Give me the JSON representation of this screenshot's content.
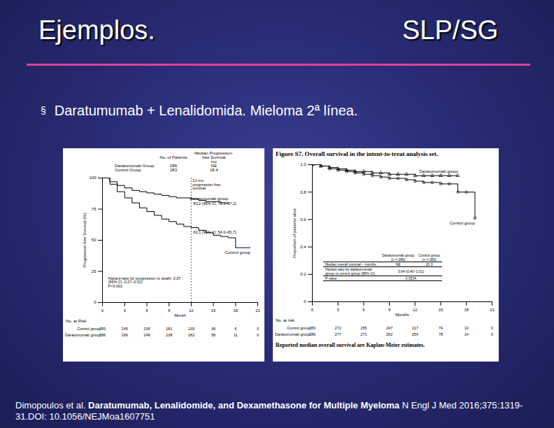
{
  "slide": {
    "title": "Ejemplos.",
    "title_right": "SLP/SG",
    "bullet": "§",
    "text": "Daratumumab + Lenalidomida. Mieloma 2ª línea.",
    "citation": {
      "authors": "Dimopoulos et al.",
      "title": "Daratumumab, Lenalidomide, and Dexamethasone for Multiple Myeloma",
      "journal": "N Engl J Med 2016;375:1319-31.DOI: 10.1056/NEJMoa1607751"
    }
  },
  "chart_data": [
    {
      "type": "line",
      "x_label": "Month",
      "y_label": "Progression-free Survival (%)",
      "xlim": [
        0,
        21
      ],
      "xticks": [
        0,
        3,
        6,
        9,
        12,
        15,
        18,
        21
      ],
      "ylim": [
        0,
        100
      ],
      "yticks": [
        0,
        25,
        50,
        75,
        100
      ],
      "legend_header": {
        "patients": "No. of Patients",
        "median": "Median Progression-free Survival",
        "unit": "mo"
      },
      "landmark_month": 12,
      "annotations": {
        "landmark_title": "12-mo progression-free survival",
        "dara_ci": "83.2 (95% CI, 78.3–87.2)",
        "control_ci": "60.1 (95% CI, 54.0–65.7)",
        "hazard_ratio": "Hazard ratio for progression or death, 0.37 (95% CI, 0.27–0.52)",
        "p_value": "P<0.001"
      },
      "series": [
        {
          "name": "Daratumumab Group",
          "curve_label": "Daratumumab group",
          "patients": 286,
          "median": "NE",
          "color": "#000000",
          "x": [
            0,
            1,
            2,
            3,
            4,
            5,
            6,
            7,
            8,
            9,
            10,
            11,
            12,
            13,
            14,
            15,
            16,
            17
          ],
          "values": [
            100,
            97,
            94,
            92,
            90,
            89,
            88,
            87,
            86,
            85,
            84,
            84,
            83.2,
            82,
            81,
            81,
            80,
            80
          ]
        },
        {
          "name": "Control Group",
          "curve_label": "Control group",
          "patients": 283,
          "median": 18.4,
          "color": "#000000",
          "x": [
            0,
            1,
            2,
            3,
            4,
            5,
            6,
            7,
            8,
            9,
            10,
            11,
            12,
            13,
            14,
            15,
            16,
            17,
            18,
            19,
            20
          ],
          "values": [
            100,
            95,
            89,
            84,
            80,
            76,
            73,
            70,
            67,
            65,
            63,
            61,
            60.1,
            58,
            56,
            54,
            53,
            52,
            44,
            44,
            44
          ]
        }
      ],
      "risk_table": {
        "title": "No. at Risk",
        "rows": [
          {
            "name": "Control group",
            "values": [
              283,
              249,
              206,
              181,
              139,
              36,
              6,
              0
            ]
          },
          {
            "name": "Daratumumab group",
            "values": [
              286,
              266,
              249,
              238,
              182,
              58,
              11,
              0
            ]
          }
        ]
      }
    },
    {
      "type": "line",
      "title": "Figure S7. Overall survival in the intent-to-treat analysis set.",
      "footnote": "Reported median overall survival are Kaplan-Meier estimates.",
      "x_label": "Months",
      "y_label": "Proportion of patients alive",
      "xlim": [
        0,
        21
      ],
      "xticks": [
        0,
        3,
        6,
        9,
        12,
        15,
        18,
        21
      ],
      "ylim": [
        0,
        1
      ],
      "yticks": [
        0,
        0.2,
        0.4,
        0.6,
        0.8,
        {
          "value": 1,
          "label": "1.0"
        }
      ],
      "inner_table": {
        "columns": [
          "Daratumumab group (n = 286)",
          "Control group (n = 283)"
        ],
        "rows": [
          {
            "label": "Median overall survival – months",
            "values": [
              "NE",
              "20.3"
            ]
          },
          {
            "label": "Hazard ratio for daratumumab group vs control group (95% CI)",
            "values": [
              "0.64 (0.40–1.01)"
            ]
          },
          {
            "label": "P value",
            "values": [
              "0.0534"
            ]
          }
        ]
      },
      "series": [
        {
          "name": "Daratumumab group",
          "color": "#000000",
          "marker": "triangle",
          "x": [
            0,
            1,
            2,
            3,
            4,
            5,
            6,
            7,
            8,
            9,
            10,
            11,
            12,
            13,
            14,
            15,
            16,
            17
          ],
          "values": [
            1,
            0.99,
            0.98,
            0.97,
            0.96,
            0.95,
            0.95,
            0.94,
            0.94,
            0.93,
            0.93,
            0.93,
            0.92,
            0.92,
            0.92,
            0.92,
            0.92,
            0.92
          ]
        },
        {
          "name": "Control group",
          "color": "#000000",
          "marker": "circle",
          "x": [
            0,
            1,
            2,
            3,
            4,
            5,
            6,
            7,
            8,
            9,
            10,
            11,
            12,
            13,
            14,
            15,
            16,
            17,
            18,
            19
          ],
          "values": [
            1,
            0.99,
            0.97,
            0.96,
            0.95,
            0.94,
            0.93,
            0.92,
            0.91,
            0.9,
            0.9,
            0.89,
            0.88,
            0.87,
            0.87,
            0.86,
            0.86,
            0.8,
            0.8,
            0.61
          ]
        }
      ],
      "risk_table": {
        "title": "No. at risk",
        "rows": [
          {
            "name": "Control group",
            "values": [
              283,
              272,
              255,
              247,
              217,
              74,
              10,
              0
            ]
          },
          {
            "name": "Daratumumab group",
            "values": [
              286,
              277,
              271,
              262,
              254,
              78,
              14,
              0
            ]
          }
        ]
      }
    }
  ]
}
